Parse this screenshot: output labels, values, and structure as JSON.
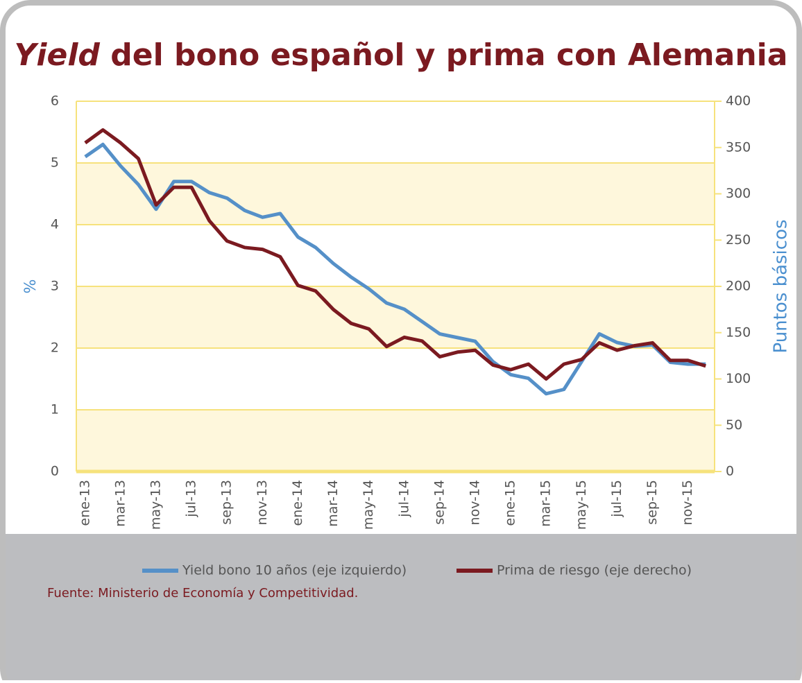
{
  "chart_data": {
    "type": "line",
    "title_emphasis": "Yield",
    "title": "del bono español y prima con Alemania",
    "ylabel": "%",
    "y2label": "Puntos básicos",
    "source": "Fuente: Ministerio de Economía y Competitividad.",
    "categories": [
      "ene-13",
      null,
      "mar-13",
      null,
      "may-13",
      null,
      "jul-13",
      null,
      "sep-13",
      null,
      "nov-13",
      null,
      "ene-14",
      null,
      "mar-14",
      null,
      "may-14",
      null,
      "jul-14",
      null,
      "sep-14",
      null,
      "nov-14",
      null,
      "ene-15",
      null,
      "mar-15",
      null,
      "may-15",
      null,
      "jul-15",
      null,
      "sep-15",
      null,
      "nov-15",
      null
    ],
    "ylim": [
      0,
      6
    ],
    "yticks": [
      0,
      1,
      2,
      3,
      4,
      5,
      6
    ],
    "y2lim": [
      0,
      400
    ],
    "y2ticks": [
      0,
      50,
      100,
      150,
      200,
      250,
      300,
      350,
      400
    ],
    "grid": true,
    "legend": "bottom",
    "series": [
      {
        "name": "Yield bono 10 años (eje izquierdo)",
        "color": "#5590c8",
        "values": [
          5.1,
          5.3,
          4.95,
          4.65,
          4.25,
          4.7,
          4.7,
          4.52,
          4.43,
          4.23,
          4.12,
          4.18,
          3.8,
          3.63,
          3.37,
          3.15,
          2.96,
          2.73,
          2.63,
          2.43,
          2.23,
          2.17,
          2.11,
          1.78,
          1.57,
          1.51,
          1.26,
          1.33,
          1.78,
          2.23,
          2.09,
          2.03,
          2.05,
          1.77,
          1.74,
          1.74
        ]
      },
      {
        "name": "Prima de riesgo (eje derecho)",
        "color": "#7b1a20",
        "axis": "y2",
        "values": [
          355,
          369,
          355,
          338,
          288,
          307,
          307,
          271,
          249,
          242,
          240,
          232,
          201,
          195,
          175,
          160,
          154,
          135,
          145,
          141,
          124,
          129,
          131,
          115,
          110,
          116,
          100,
          116,
          121,
          139,
          131,
          136,
          139,
          120,
          120,
          114
        ]
      }
    ]
  }
}
